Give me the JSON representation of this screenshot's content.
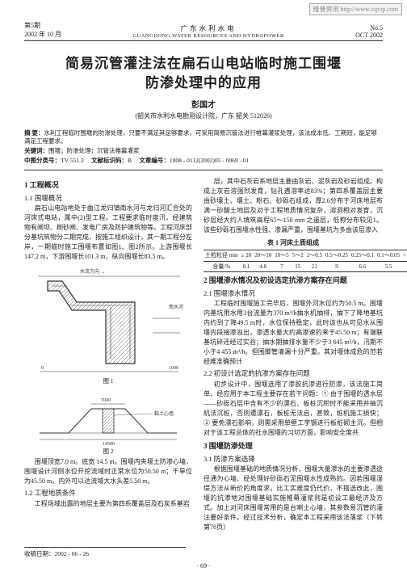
{
  "watermark": "维普资讯 http://www.cqvip.com",
  "header": {
    "issue_left1": "第5期",
    "issue_left2": "2002 年 10 月",
    "journal_cn": "广东水利水电",
    "journal_en": "GUANGDONG WATER RESOURCES AND HYDROPOWER",
    "issue_right1": "No.5",
    "issue_right2": "OCT 2002"
  },
  "title_line1": "简易沉管灌注法在扁石山电站临时施工围堰",
  "title_line2": "防渗处理中的应用",
  "author": "彭国才",
  "affiliation": "(韶关市水利水电勘测设计院，广东 韶关  512026)",
  "meta": {
    "abstract_label": "摘  要：",
    "abstract": "水利工程临时围堰的防渗处理，只要不满足其足够要求，可采用简易沉管法进行帷幕灌浆处理，该法成本低、工期短，能足够满足工程要求。",
    "keywords_label": "关键词：",
    "keywords": "围堰；防渗处理；沉管法帷幕灌浆",
    "clc_label": "中图分类号：",
    "clc": "TV 551.3",
    "doc_label": "文献标识码：",
    "doc": "B",
    "artno_label": "文章编号：",
    "artno": "1008 - 0112(2002)05 - 0069 - 01"
  },
  "left": {
    "s1_title": "1  工程概况",
    "s11_title": "1.1  围堰概况",
    "p1": "扁石山电站地处于曲江龙归镇南水河与龙归河汇合处的河床式电站，属中(2)型工程。工程要求临时度汛，经建筑物有闸坝、刷砂闸、发电厂房及防护建筑物等。工程河床部分基坑筑物分二期完成，按施工组织设计，其一期工程分左岸，一期临时施工围堰布置如图1、图2所示。上游围堰长147.2 m，下游围堰长101.3 m，纵向围堰长83.5 m。",
    "fig1_caption": "图 1",
    "fig2_caption": "图 2",
    "p2": "围堰顶宽7.0 m。底宽 14.5 m。围堰内夹堰土防渗心墙，围堰设计河侧水位开挖流域时正常水位为50.50 m；干旱位为45.50 m。内外可以达流域大水头差5.50 m。",
    "s12_title": "1.2  工程地质条件",
    "p3": "工程场域出露的地层主要为第四系覆盖层及石炭系基岩"
  },
  "right": {
    "p_top": "层，其中石灰岩系地层主要由灰岩、泥灰岩及砂岩组成。构成上灰岩溶强烈发育，钻孔遇溶率达83%；第四系覆盖层主要由砂壤土、壤土、粉石、砂砾石组成，厚2.6分布于河床地层布满一砂酸土地层及对于工程地质情况复杂，溶洞相对发育，沉砂层经大约人填筑高程65～150 mm 之遥层，低称分布较见1。该些砂砾石围堰水性强、渗漏严重，围堰基坑为多由该层渗入",
    "table_title": "表 1  河床土质组成",
    "table": {
      "headers": [
        "土粒粒径 mm",
        "≥ 20",
        "20～10",
        "10～5",
        "5～2",
        "2～0.5",
        "0.5～0.25",
        "0.25～0.1",
        "0.1～0.05",
        "< 0.05"
      ],
      "row_label": "含量/%",
      "row": [
        "",
        "8.1",
        "4.8",
        "7",
        "15",
        "21",
        "9",
        "6.6",
        "5.5",
        "12"
      ]
    },
    "s2_title": "2  围堰渗水情况及初设选定抗渗方案存在问题",
    "s21_title": "2.1  围堰渗水情况",
    "p21": "工程临时围堰施工完毕后，围堰外河水位约为50.5 m。围堰内基坑用水用3台流量为370 m³/h抽水机抽排，抽下了降地基坑内约到了降49.5 m时，水位保持稳定，此时该也从可见水从围堰内段接渗溢出，渗透水量大约高渗速的来于45.50 m；有端联基坑碎还经过实验；抽水期抽排水量不少于3 645 m³/h，汛期不小于4 455 m³/h。但围脚管清漏十分严重。其对堰体成危的范若经难准确预计",
    "s22_title": "2.2  初设计选定的抗渗方案存在问题",
    "p22": "初步设计中，围堰选用了渗胶抗渗进行防渗，该法施工简单，经应用于本工程主要存在若干问题：① 由于围堰的透水层——砂砾石层中含有不少的漂石、板桩沉积时不能采用井抽沉机法沉桩，否则遭漂石，板桩无法启，甚致，桩机施工损快；② 要免漂石影响，则需采用单壁工字钢进行板桩砌主沉。但相对于该工程总体的社水围堰的习切方面，影响安全度共",
    "s3_title": "3  围堰防渗处理",
    "s31_title": "3.1  防渗方案选择",
    "p31": "根据围堰基础的地质情况分析，围堰大量渗水的主要渗透途径通为心墙、经处理好砂砾石泥围堰水性成熟的。因若围堰湿堤方法从新价的角度求，比工实难度仍代价，不搭选改此，围堰的抗渗地对围堰基础实施帷幕灌浆则是初设工最经济及方式。加上对河床围堰常用的是台喇土心墙，其参数易沉管的灌注要好条件。经过技术分析，确定本工程采用该法落浆（下转第78页）"
  },
  "footnotes": {
    "date_label": "收稿日期：",
    "date": "2002 - 06 - 26"
  },
  "pagenum": "·  69  ·"
}
